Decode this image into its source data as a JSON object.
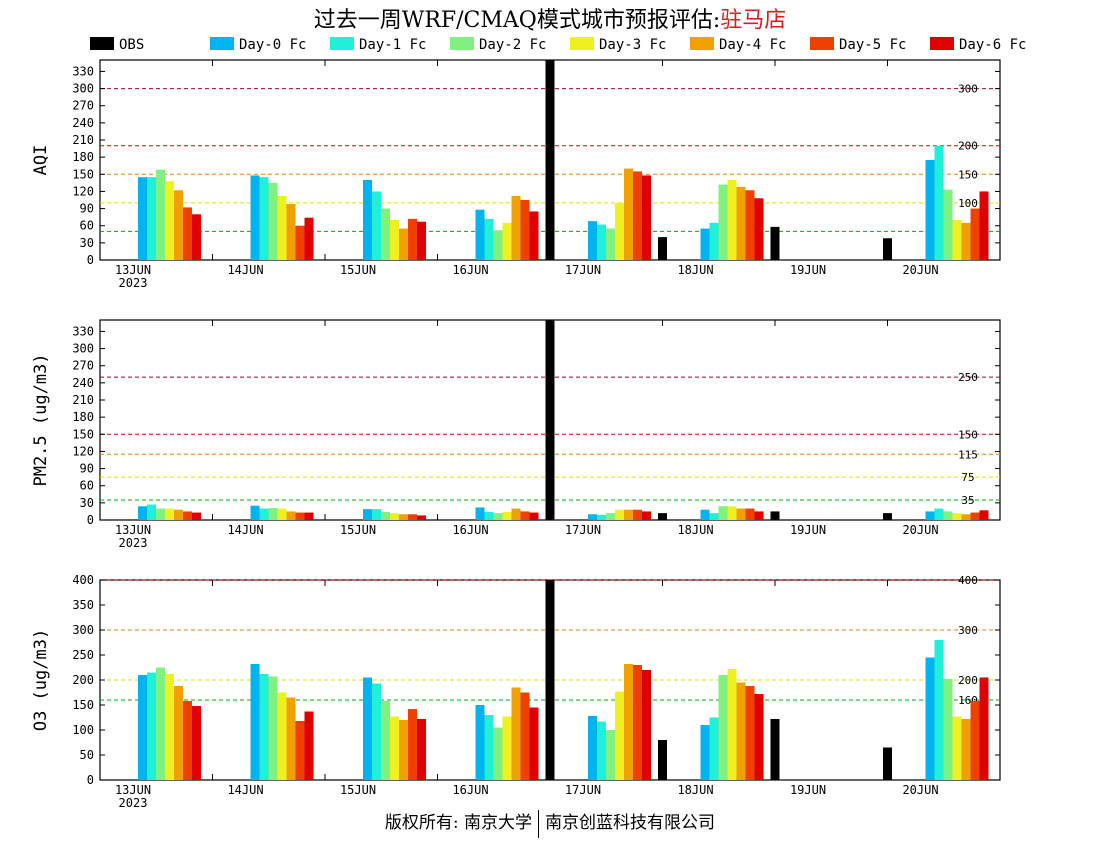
{
  "title": {
    "main": "过去一周WRF/CMAQ模式城市预报评估:",
    "site": "驻马店"
  },
  "footer": {
    "left": "版权所有: 南京大学",
    "right": "南京创蓝科技有限公司"
  },
  "chart_data": {
    "type": "bar",
    "legend": [
      {
        "name": "OBS",
        "color": "#000000"
      },
      {
        "name": "Day-0 Fc",
        "color": "#00b4f0"
      },
      {
        "name": "Day-1 Fc",
        "color": "#20f0d8"
      },
      {
        "name": "Day-2 Fc",
        "color": "#80f080"
      },
      {
        "name": "Day-3 Fc",
        "color": "#f0f020"
      },
      {
        "name": "Day-4 Fc",
        "color": "#f0a000"
      },
      {
        "name": "Day-5 Fc",
        "color": "#f04000"
      },
      {
        "name": "Day-6 Fc",
        "color": "#e00000"
      }
    ],
    "categories": [
      "13JUN",
      "14JUN",
      "15JUN",
      "16JUN",
      "17JUN",
      "18JUN",
      "19JUN",
      "20JUN"
    ],
    "year_label": "2023",
    "panels": [
      {
        "ylabel": "AQI",
        "ylim": [
          0,
          350
        ],
        "yticks": [
          0,
          30,
          60,
          90,
          120,
          150,
          180,
          210,
          240,
          270,
          300,
          330
        ],
        "thresholds": [
          {
            "value": 50,
            "label": "50",
            "color": "#00b000"
          },
          {
            "value": 100,
            "label": "100",
            "color": "#e0e000"
          },
          {
            "value": 150,
            "label": "150",
            "color": "#f08000"
          },
          {
            "value": 200,
            "label": "200",
            "color": "#e00000"
          },
          {
            "value": 300,
            "label": "300",
            "color": "#a00040"
          }
        ],
        "obs": [
          null,
          null,
          null,
          null,
          350,
          40,
          58,
          38
        ],
        "fc": [
          [
            145,
            145,
            158,
            138,
            122,
            92,
            80
          ],
          [
            148,
            145,
            135,
            112,
            98,
            60,
            74
          ],
          [
            140,
            120,
            90,
            70,
            55,
            72,
            67
          ],
          [
            88,
            72,
            52,
            65,
            112,
            105,
            85
          ],
          [
            68,
            62,
            55,
            100,
            160,
            155,
            148
          ],
          [
            55,
            65,
            132,
            140,
            128,
            122,
            108
          ],
          [
            null,
            null,
            null,
            null,
            null,
            null,
            null
          ],
          [
            175,
            200,
            123,
            70,
            65,
            90,
            120
          ]
        ]
      },
      {
        "ylabel": "PM2.5 (ug/m3)",
        "ylim": [
          0,
          350
        ],
        "yticks": [
          0,
          30,
          60,
          90,
          120,
          150,
          180,
          210,
          240,
          270,
          300,
          330
        ],
        "thresholds": [
          {
            "value": 35,
            "label": "35",
            "color": "#00b000"
          },
          {
            "value": 75,
            "label": "75",
            "color": "#e0e000"
          },
          {
            "value": 115,
            "label": "115",
            "color": "#f08000"
          },
          {
            "value": 150,
            "label": "150",
            "color": "#e00000"
          },
          {
            "value": 250,
            "label": "250",
            "color": "#a00040"
          }
        ],
        "obs": [
          null,
          null,
          null,
          null,
          350,
          12,
          15,
          12
        ],
        "fc": [
          [
            24,
            27,
            20,
            20,
            18,
            15,
            13
          ],
          [
            25,
            20,
            21,
            20,
            15,
            13,
            13
          ],
          [
            19,
            19,
            14,
            12,
            10,
            10,
            8
          ],
          [
            22,
            14,
            12,
            14,
            20,
            15,
            13
          ],
          [
            10,
            9,
            12,
            18,
            18,
            18,
            15
          ],
          [
            18,
            12,
            24,
            24,
            20,
            20,
            15
          ],
          [
            null,
            null,
            null,
            null,
            null,
            null,
            null
          ],
          [
            15,
            20,
            15,
            12,
            10,
            13,
            17
          ]
        ]
      },
      {
        "ylabel": "O3 (ug/m3)",
        "ylim": [
          0,
          400
        ],
        "yticks": [
          0,
          50,
          100,
          150,
          200,
          250,
          300,
          350,
          400
        ],
        "thresholds": [
          {
            "value": 160,
            "label": "160",
            "color": "#00b000"
          },
          {
            "value": 200,
            "label": "200",
            "color": "#e0e000"
          },
          {
            "value": 300,
            "label": "300",
            "color": "#f08000"
          },
          {
            "value": 400,
            "label": "400",
            "color": "#e00000"
          }
        ],
        "obs": [
          null,
          null,
          null,
          null,
          400,
          80,
          122,
          65
        ],
        "fc": [
          [
            210,
            215,
            225,
            212,
            188,
            158,
            148
          ],
          [
            232,
            212,
            207,
            175,
            165,
            118,
            137
          ],
          [
            205,
            193,
            158,
            127,
            120,
            142,
            122
          ],
          [
            150,
            130,
            105,
            127,
            185,
            175,
            145
          ],
          [
            128,
            117,
            100,
            177,
            232,
            230,
            220
          ],
          [
            110,
            125,
            210,
            222,
            195,
            188,
            172
          ],
          [
            null,
            null,
            null,
            null,
            null,
            null,
            null
          ],
          [
            245,
            280,
            202,
            127,
            122,
            158,
            205
          ]
        ]
      }
    ]
  }
}
